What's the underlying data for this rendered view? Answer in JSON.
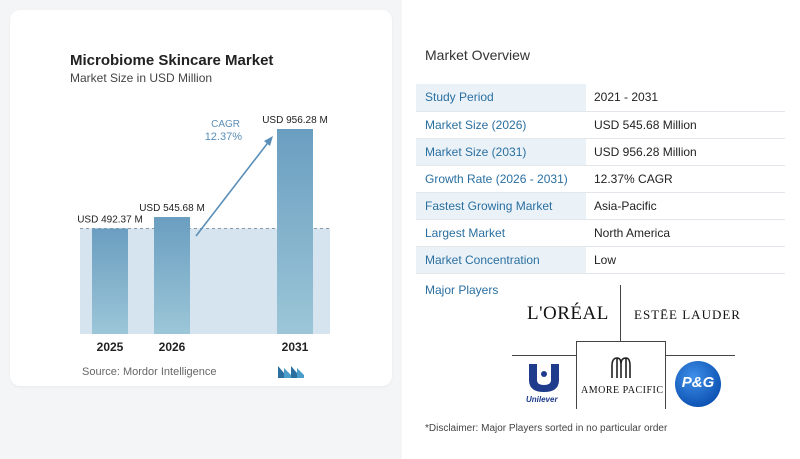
{
  "chart_data": {
    "type": "bar",
    "title": "Microbiome Skincare Market",
    "subtitle": "Market Size in USD Million",
    "categories": [
      "2025",
      "2026",
      "2031"
    ],
    "values": [
      492.37,
      545.68,
      956.28
    ],
    "value_labels": [
      "USD 492.37 M",
      "USD 545.68 M",
      "USD 956.28 M"
    ],
    "cagr_label": "CAGR",
    "cagr_value": "12.37%",
    "ylim": [
      0,
      1000
    ],
    "grid": false,
    "colors": {
      "bar": "#6a9ec0",
      "bar_light": "#9cc6d8",
      "baseline_band": "#d6e4ef",
      "arrow": "#5b8fb8",
      "cagr_text": "#5b8fb8"
    }
  },
  "source": "Source:  Mordor Intelligence",
  "overview": {
    "title": "Market Overview",
    "rows": [
      {
        "key": "Study Period",
        "value": "2021 - 2031"
      },
      {
        "key": "Market Size (2026)",
        "value": "USD 545.68 Million"
      },
      {
        "key": "Market Size (2031)",
        "value": "USD 956.28 Million"
      },
      {
        "key": "Growth Rate (2026 - 2031)",
        "value": "12.37% CAGR"
      },
      {
        "key": "Fastest Growing Market",
        "value": "Asia-Pacific"
      },
      {
        "key": "Largest Market",
        "value": "North America"
      },
      {
        "key": "Market Concentration",
        "value": "Low"
      }
    ]
  },
  "major_players": {
    "title": "Major Players",
    "logos": {
      "loreal": "L'ORÉAL",
      "estee": "ESTĒE LAUDER",
      "unilever": "Unilever",
      "amore": "AMORE PACIFIC",
      "pg": "P&G"
    }
  },
  "disclaimer": "*Disclaimer: Major Players sorted in no particular order"
}
